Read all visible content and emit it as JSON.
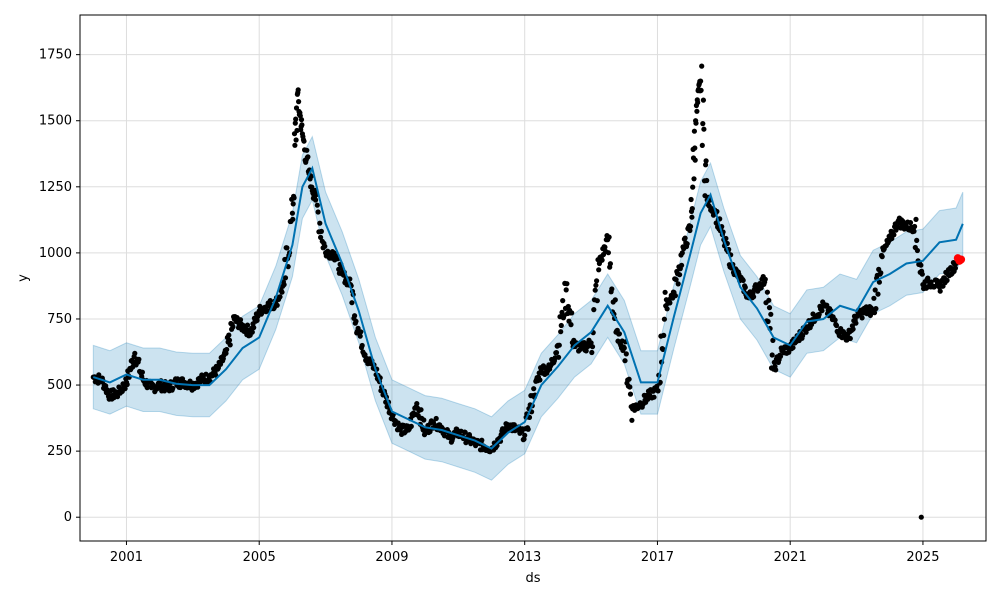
{
  "chart_data": {
    "type": "line",
    "title": "",
    "xlabel": "ds",
    "ylabel": "y",
    "grid": true,
    "xlim": [
      1999.6,
      2026.9
    ],
    "ylim": [
      -90,
      1900
    ],
    "x_ticks": [
      2001,
      2005,
      2009,
      2013,
      2017,
      2021,
      2025
    ],
    "x_tick_labels": [
      "2001",
      "2005",
      "2009",
      "2013",
      "2017",
      "2021",
      "2025"
    ],
    "y_ticks": [
      0,
      250,
      500,
      750,
      1000,
      1250,
      1500,
      1750
    ],
    "y_tick_labels": [
      "0",
      "250",
      "500",
      "750",
      "1000",
      "1250",
      "1500",
      "1750"
    ],
    "colors": {
      "observed": "#000000",
      "forecast_line": "#0072B2",
      "uncertainty_band": "#0072B2",
      "future_points": "#ff0000",
      "grid": "#dddddd"
    },
    "series": [
      {
        "kind": "forecast",
        "x": [
          2000.0,
          2000.5,
          2001.0,
          2001.5,
          2002.0,
          2002.5,
          2003.0,
          2003.5,
          2004.0,
          2004.5,
          2005.0,
          2005.5,
          2006.0,
          2006.3,
          2006.6,
          2007.0,
          2007.5,
          2008.0,
          2008.5,
          2009.0,
          2009.5,
          2010.0,
          2010.5,
          2011.0,
          2011.5,
          2012.0,
          2012.5,
          2013.0,
          2013.5,
          2014.0,
          2014.5,
          2015.0,
          2015.5,
          2016.0,
          2016.5,
          2017.0,
          2017.5,
          2018.0,
          2018.3,
          2018.6,
          2019.0,
          2019.5,
          2020.0,
          2020.5,
          2021.0,
          2021.5,
          2022.0,
          2022.5,
          2023.0,
          2023.5,
          2024.0,
          2024.5,
          2025.0,
          2025.5,
          2026.0,
          2026.2
        ],
        "yhat": [
          530,
          510,
          540,
          520,
          520,
          505,
          500,
          500,
          560,
          640,
          680,
          830,
          1030,
          1250,
          1320,
          1110,
          960,
          780,
          560,
          400,
          370,
          340,
          330,
          310,
          290,
          260,
          320,
          360,
          500,
          570,
          650,
          700,
          800,
          700,
          510,
          510,
          760,
          1000,
          1150,
          1220,
          1050,
          870,
          790,
          680,
          650,
          740,
          750,
          800,
          780,
          890,
          920,
          960,
          970,
          1040,
          1050,
          1110
        ],
        "band_half_width": 120
      },
      {
        "kind": "observed",
        "x": [
          2000.0,
          2000.25,
          2000.5,
          2000.75,
          2001.0,
          2001.25,
          2001.5,
          2001.75,
          2002.0,
          2002.25,
          2002.5,
          2002.75,
          2003.0,
          2003.25,
          2003.5,
          2003.75,
          2004.0,
          2004.25,
          2004.5,
          2004.75,
          2005.0,
          2005.25,
          2005.5,
          2005.75,
          2006.0,
          2006.15,
          2006.3,
          2006.5,
          2006.7,
          2007.0,
          2007.25,
          2007.5,
          2007.75,
          2008.0,
          2008.25,
          2008.5,
          2008.75,
          2009.0,
          2009.25,
          2009.5,
          2009.75,
          2010.0,
          2010.25,
          2010.5,
          2010.75,
          2011.0,
          2011.25,
          2011.5,
          2011.75,
          2012.0,
          2012.25,
          2012.5,
          2012.75,
          2013.0,
          2013.25,
          2013.5,
          2013.75,
          2014.0,
          2014.25,
          2014.5,
          2014.75,
          2015.0,
          2015.25,
          2015.5,
          2015.75,
          2016.0,
          2016.25,
          2016.5,
          2016.75,
          2017.0,
          2017.25,
          2017.5,
          2017.75,
          2018.0,
          2018.15,
          2018.3,
          2018.5,
          2018.75,
          2019.0,
          2019.25,
          2019.5,
          2019.75,
          2020.0,
          2020.25,
          2020.5,
          2020.75,
          2021.0,
          2021.25,
          2021.5,
          2021.75,
          2022.0,
          2022.25,
          2022.5,
          2022.75,
          2023.0,
          2023.25,
          2023.5,
          2023.75,
          2024.0,
          2024.25,
          2024.5,
          2024.75,
          2025.0,
          2025.25,
          2025.5,
          2025.75,
          2026.0
        ],
        "y": [
          530,
          520,
          460,
          470,
          510,
          620,
          520,
          490,
          500,
          490,
          510,
          510,
          500,
          520,
          530,
          560,
          620,
          750,
          720,
          700,
          780,
          800,
          810,
          880,
          1150,
          1600,
          1450,
          1300,
          1200,
          1000,
          1000,
          920,
          880,
          700,
          600,
          560,
          470,
          390,
          330,
          330,
          430,
          320,
          360,
          340,
          300,
          320,
          300,
          280,
          270,
          260,
          300,
          350,
          330,
          310,
          460,
          560,
          560,
          650,
          860,
          650,
          640,
          660,
          960,
          1050,
          700,
          640,
          410,
          430,
          460,
          480,
          800,
          850,
          1000,
          1100,
          1500,
          1650,
          1200,
          1150,
          1050,
          950,
          900,
          830,
          870,
          900,
          560,
          630,
          640,
          680,
          720,
          760,
          800,
          760,
          700,
          680,
          760,
          780,
          780,
          990,
          1050,
          1120,
          1100,
          1100,
          880,
          890,
          870,
          920,
          960
        ]
      },
      {
        "kind": "future_points",
        "x": [
          2026.05,
          2026.1,
          2026.15
        ],
        "y": [
          980,
          970,
          975
        ]
      },
      {
        "kind": "outlier",
        "x": [
          2024.95
        ],
        "y": [
          0
        ]
      }
    ]
  }
}
